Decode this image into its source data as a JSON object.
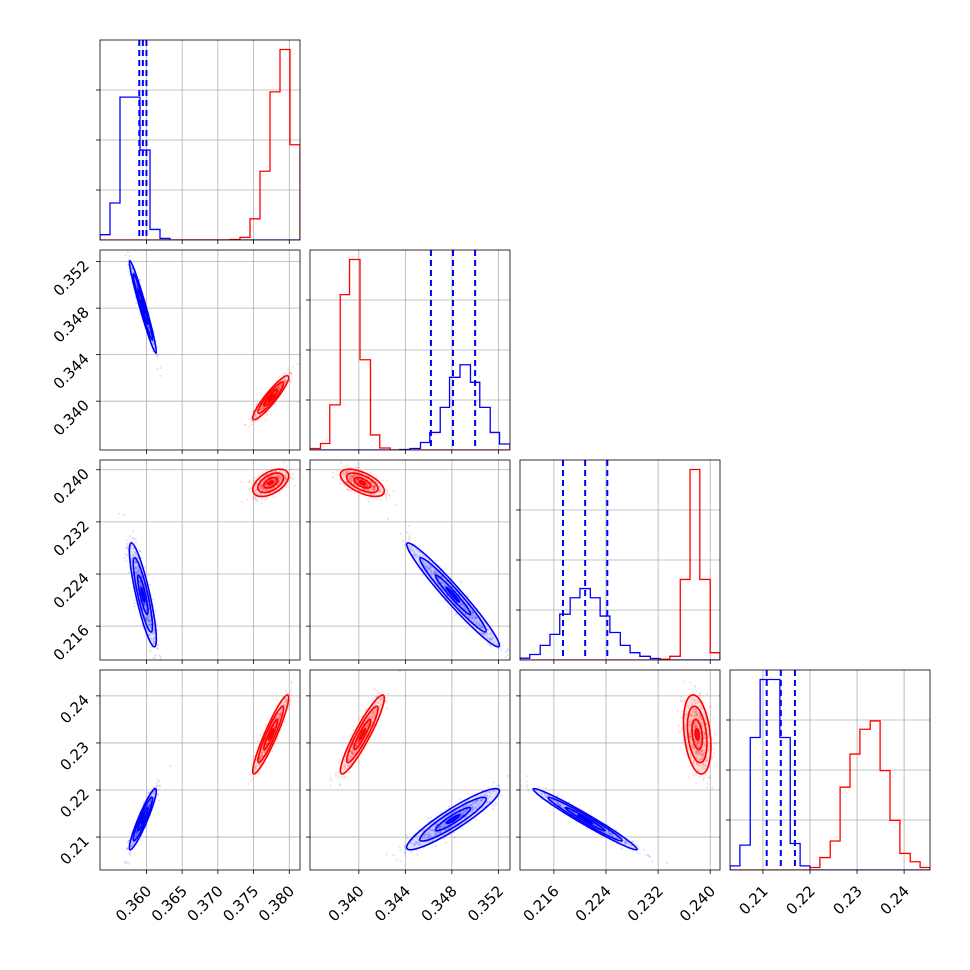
{
  "chart_data": {
    "type": "corner",
    "grid": true,
    "colors": {
      "blue": "#0000ff",
      "red": "#ff0000",
      "grid": "#b0b0b0"
    },
    "parameters": [
      {
        "range": [
          0.3535,
          0.3815
        ],
        "ticks": [
          0.36,
          0.365,
          0.37,
          0.375,
          0.38
        ],
        "tick_labels": [
          "0.360",
          "0.365",
          "0.370",
          "0.375",
          "0.380"
        ]
      },
      {
        "range": [
          0.3358,
          0.353
        ],
        "ticks": [
          0.34,
          0.344,
          0.348,
          0.352
        ],
        "tick_labels": [
          "0.340",
          "0.344",
          "0.348",
          "0.352"
        ]
      },
      {
        "range": [
          0.2108,
          0.2415
        ],
        "ticks": [
          0.216,
          0.224,
          0.232,
          0.24
        ],
        "tick_labels": [
          "0.216",
          "0.224",
          "0.232",
          "0.240"
        ]
      },
      {
        "range": [
          0.203,
          0.2455
        ],
        "ticks": [
          0.21,
          0.22,
          0.23,
          0.24
        ],
        "tick_labels": [
          "0.21",
          "0.22",
          "0.23",
          "0.24"
        ]
      }
    ],
    "series": [
      {
        "color": "blue",
        "mean": [
          0.3595,
          0.3481,
          0.2208,
          0.2138
        ],
        "std": [
          0.0009,
          0.0019,
          0.0038,
          0.0031
        ],
        "quantiles": [
          [
            0.359,
            0.3595,
            0.36
          ],
          [
            0.3462,
            0.3481,
            0.35
          ],
          [
            0.2174,
            0.2208,
            0.2242
          ],
          [
            0.2108,
            0.2138,
            0.2168
          ]
        ]
      },
      {
        "color": "red",
        "mean": [
          0.3774,
          0.3403,
          0.238,
          0.2318
        ],
        "std": [
          0.0012,
          0.0009,
          0.001,
          0.004
        ]
      }
    ],
    "correlations": {
      "blue": {
        "0-1": -0.97,
        "0-2": -0.85,
        "0-3": 0.93,
        "1-2": -0.97,
        "1-3": 0.92,
        "2-3": -0.98
      },
      "red": {
        "0-1": 0.92,
        "0-2": 0.5,
        "0-3": 0.93,
        "1-2": -0.6,
        "1-3": 0.92,
        "2-3": -0.3
      }
    },
    "histograms": [
      {
        "bins": [
          0.3535,
          0.3549,
          0.3563,
          0.3577,
          0.3591,
          0.3605,
          0.3619,
          0.3633,
          0.3647,
          0.3661,
          0.3675,
          0.3689,
          0.3703,
          0.3717,
          0.3731,
          0.3745,
          0.3759,
          0.3773,
          0.3787,
          0.3801,
          0.3815
        ],
        "blue": [
          1,
          7,
          27,
          27,
          17,
          2,
          0.3,
          0,
          0,
          0,
          0,
          0,
          0,
          0,
          0,
          0,
          0,
          0,
          0,
          0
        ],
        "red": [
          0,
          0,
          0,
          0,
          0,
          0,
          0,
          0,
          0,
          0,
          0,
          0,
          0,
          0.1,
          0.5,
          4,
          13,
          28,
          36,
          18
        ]
      },
      {
        "bins": [
          0.3358,
          0.3367,
          0.3375,
          0.3384,
          0.3392,
          0.3401,
          0.341,
          0.3418,
          0.3427,
          0.3435,
          0.3444,
          0.3453,
          0.3461,
          0.347,
          0.3478,
          0.3487,
          0.3496,
          0.3504,
          0.3513,
          0.3521,
          0.353
        ],
        "blue": [
          0,
          0,
          0,
          0,
          0,
          0,
          0,
          0,
          0,
          0.1,
          0.3,
          1.5,
          3.5,
          8.5,
          14.5,
          17,
          13.5,
          8.5,
          3.5,
          1.2
        ],
        "red": [
          0.3,
          1.3,
          9,
          31,
          38,
          18,
          3,
          0.4,
          0,
          0,
          0,
          0,
          0,
          0,
          0,
          0,
          0,
          0,
          0,
          0
        ]
      },
      {
        "bins": [
          0.2108,
          0.2123,
          0.2139,
          0.2154,
          0.2169,
          0.2185,
          0.22,
          0.2216,
          0.2231,
          0.2246,
          0.2262,
          0.2277,
          0.2292,
          0.2308,
          0.2323,
          0.2338,
          0.2354,
          0.2369,
          0.2384,
          0.24,
          0.2415
        ],
        "blue": [
          0.5,
          1.5,
          4,
          7,
          12.5,
          17,
          19.5,
          17,
          12,
          7.5,
          4,
          2,
          1,
          0.4,
          0,
          0,
          0,
          0,
          0,
          0
        ],
        "red": [
          0,
          0,
          0,
          0,
          0,
          0,
          0,
          0,
          0,
          0,
          0,
          0,
          0,
          0,
          0.2,
          1,
          22,
          52,
          22,
          2
        ]
      },
      {
        "bins": [
          0.203,
          0.2051,
          0.2073,
          0.2094,
          0.2115,
          0.2136,
          0.2158,
          0.2179,
          0.22,
          0.2221,
          0.2243,
          0.2264,
          0.2285,
          0.2306,
          0.2328,
          0.2349,
          0.237,
          0.2391,
          0.2413,
          0.2434,
          0.2455
        ],
        "blue": [
          0.5,
          3,
          16,
          23,
          23,
          16,
          3.2,
          0.5,
          0,
          0,
          0,
          0,
          0,
          0,
          0,
          0,
          0,
          0,
          0,
          0
        ],
        "red": [
          0,
          0,
          0,
          0,
          0,
          0,
          0,
          0,
          0.3,
          1.5,
          3.5,
          10,
          14,
          17,
          18,
          12,
          6,
          2,
          1,
          0.3
        ]
      }
    ]
  }
}
